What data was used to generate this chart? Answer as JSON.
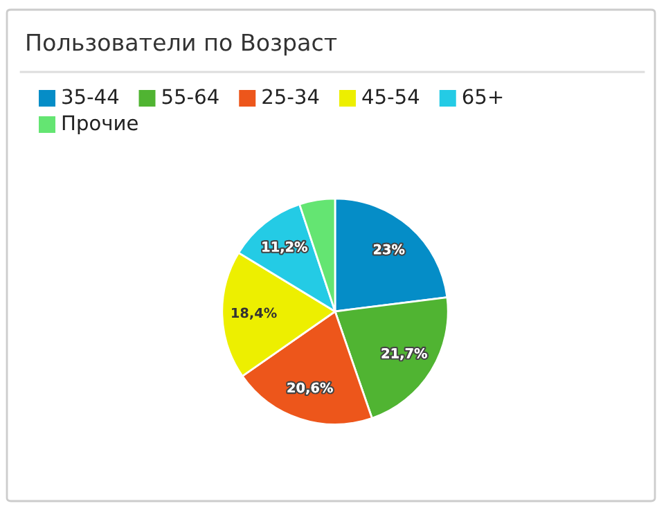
{
  "chart_data": {
    "type": "pie",
    "title": "Пользователи по Возраст",
    "categories": [
      "35-44",
      "55-64",
      "25-34",
      "45-54",
      "65+",
      "Прочие"
    ],
    "values": [
      23,
      21.7,
      20.6,
      18.4,
      11.2,
      5.1
    ],
    "colors": [
      "#058dc7",
      "#50b432",
      "#ed561b",
      "#edef00",
      "#24cbe5",
      "#64e572"
    ],
    "value_labels": [
      "23%",
      "21,7%",
      "20,6%",
      "18,4%",
      "11,2%",
      null
    ],
    "legend": "top"
  }
}
